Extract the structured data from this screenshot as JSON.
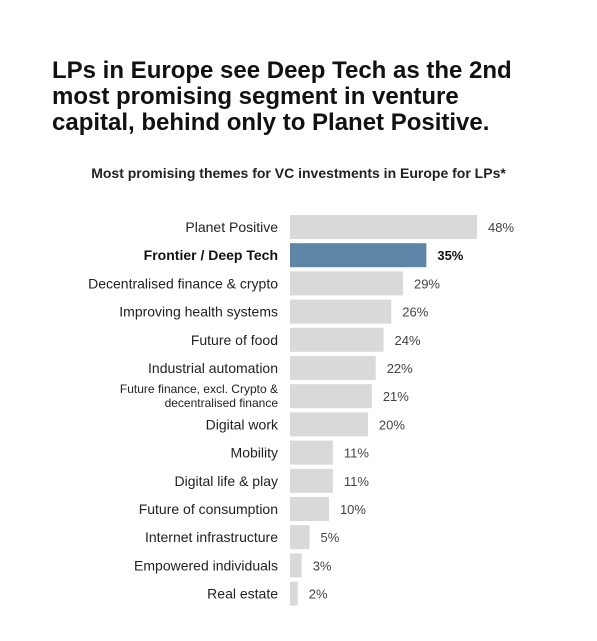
{
  "headline": {
    "lines": [
      "LPs in Europe see Deep Tech as the 2nd",
      "most promising segment in venture",
      "capital, behind only to Planet Positive."
    ]
  },
  "colors": {
    "bar": "#d9d9d9",
    "highlight_bar": "#5e84a6"
  },
  "chart_data": {
    "type": "bar",
    "orientation": "horizontal",
    "title": "Most promising themes for VC investments in Europe for LPs*",
    "value_suffix": "%",
    "highlight": "Frontier / Deep Tech",
    "categories": [
      "Planet Positive",
      "Frontier / Deep Tech",
      "Decentralised finance & crypto",
      "Improving health systems",
      "Future of food",
      "Industrial automation",
      "Future finance, excl. Crypto & decentralised finance",
      "Digital work",
      "Mobility",
      "Digital life & play",
      "Future of consumption",
      "Internet infrastructure",
      "Empowered individuals",
      "Real estate"
    ],
    "category_lines": [
      [
        "Planet Positive"
      ],
      [
        "Frontier / Deep Tech"
      ],
      [
        "Decentralised finance & crypto"
      ],
      [
        "Improving health systems"
      ],
      [
        "Future of food"
      ],
      [
        "Industrial automation"
      ],
      [
        "Future finance, excl. Crypto &",
        "decentralised finance"
      ],
      [
        "Digital work"
      ],
      [
        "Mobility"
      ],
      [
        "Digital life & play"
      ],
      [
        "Future of consumption"
      ],
      [
        "Internet infrastructure"
      ],
      [
        "Empowered individuals"
      ],
      [
        "Real estate"
      ]
    ],
    "values": [
      48,
      35,
      29,
      26,
      24,
      22,
      21,
      20,
      11,
      11,
      10,
      5,
      3,
      2
    ],
    "value_labels": [
      "48%",
      "35%",
      "29%",
      "26%",
      "24%",
      "22%",
      "21%",
      "20%",
      "11%",
      "11%",
      "10%",
      "5%",
      "3%",
      "2%"
    ],
    "xlim": [
      0,
      48
    ],
    "grid": false,
    "legend": "none"
  }
}
